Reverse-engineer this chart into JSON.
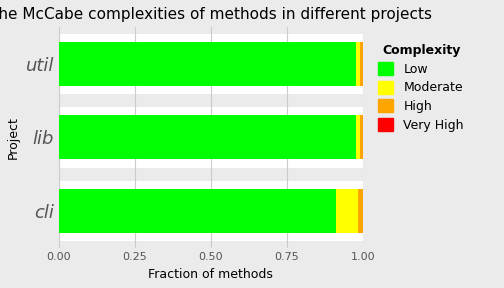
{
  "title": "The McCabe complexities of methods in different projects",
  "xlabel": "Fraction of methods",
  "ylabel": "Project",
  "categories": [
    "cli",
    "lib",
    "util"
  ],
  "legend_title": "Complexity",
  "legend_labels": [
    "Low",
    "Moderate",
    "High",
    "Very High"
  ],
  "data": {
    "Low": [
      0.91,
      0.979,
      0.976
    ],
    "Moderate": [
      0.074,
      0.012,
      0.014
    ],
    "High": [
      0.016,
      0.009,
      0.01
    ],
    "Very High": [
      0.0,
      0.0,
      0.0
    ]
  },
  "colors": {
    "Low": "#00FF00",
    "Moderate": "#FFFF00",
    "High": "#FFA500",
    "Very High": "#FF0000"
  },
  "xlim": [
    0.0,
    1.0
  ],
  "xticks": [
    0.0,
    0.25,
    0.5,
    0.75,
    1.0
  ],
  "bar_height": 0.6,
  "background_color": "#EBEBEB",
  "white_band_color": "#FFFFFF",
  "grid_color": "#CBCBCB",
  "title_fontsize": 11,
  "axis_label_fontsize": 9,
  "tick_fontsize": 8,
  "legend_fontsize": 9,
  "ytick_fontsize": 13,
  "ytick_color": "#888888"
}
